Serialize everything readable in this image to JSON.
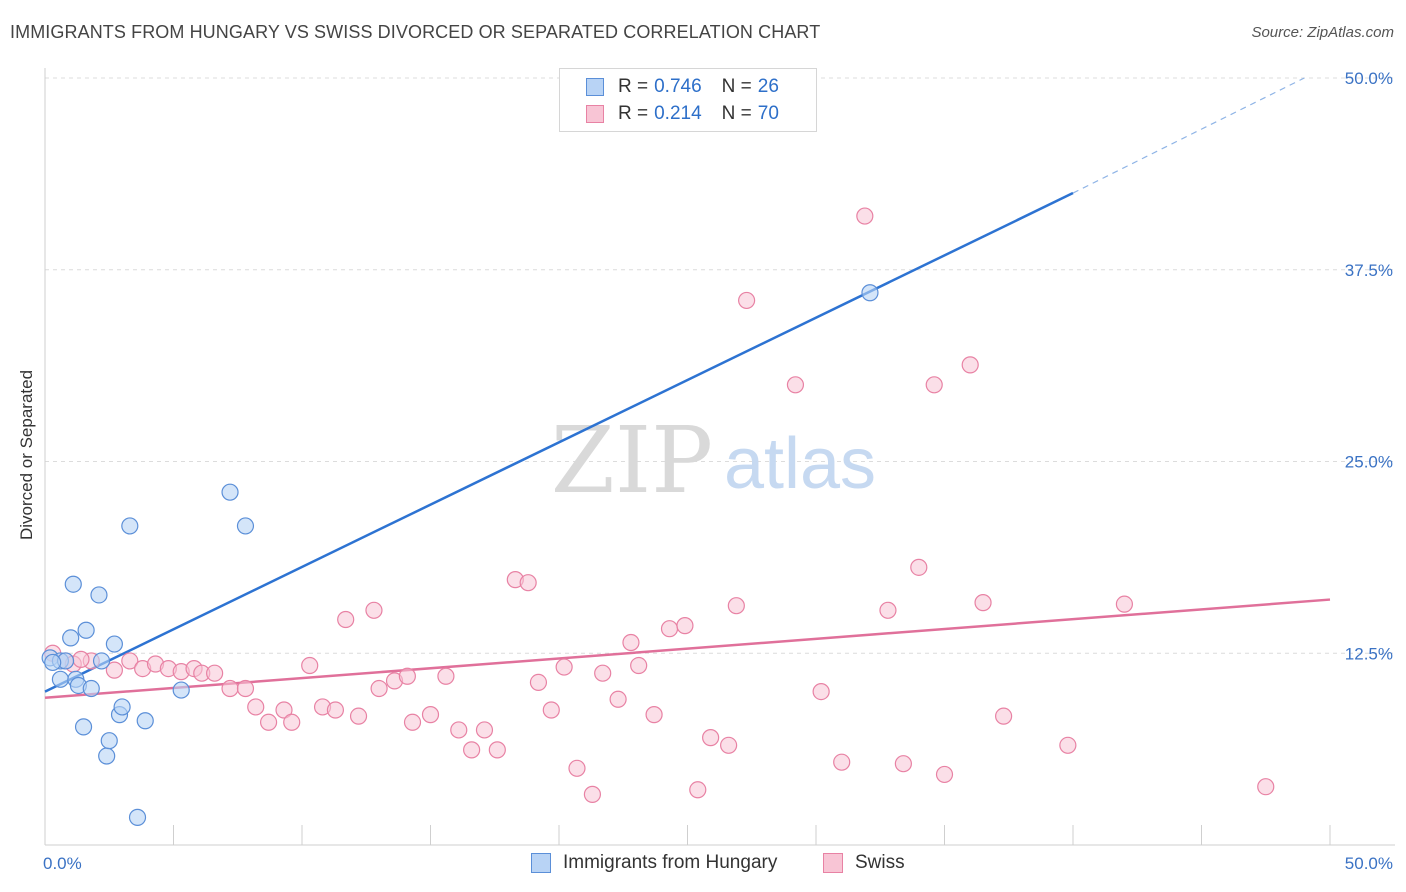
{
  "title": "IMMIGRANTS FROM HUNGARY VS SWISS DIVORCED OR SEPARATED CORRELATION CHART",
  "source": "Source: ZipAtlas.com",
  "watermark": {
    "zip": "ZIP",
    "atlas": "atlas"
  },
  "legend": {
    "items": [
      {
        "r_label": "R =",
        "r_value": "0.746",
        "n_label": "N =",
        "n_value": "26"
      },
      {
        "r_label": "R =",
        "r_value": "0.214",
        "n_label": "N =",
        "n_value": "70"
      }
    ]
  },
  "bottom_legend": {
    "series1": "Immigrants from Hungary",
    "series2": "Swiss"
  },
  "colors": {
    "blue_fill": "#b8d3f5",
    "blue_stroke": "#5b8fd8",
    "blue_line": "#2d73d2",
    "pink_fill": "#f8c5d5",
    "pink_stroke": "#e882a4",
    "pink_line": "#e0709a",
    "tick_text": "#3a72c4",
    "grid": "#dcdcdc"
  },
  "chart_data": {
    "type": "scatter",
    "title": "IMMIGRANTS FROM HUNGARY VS SWISS DIVORCED OR SEPARATED CORRELATION CHART",
    "xlabel": "",
    "ylabel": "Divorced or Separated",
    "xlim": [
      0,
      50
    ],
    "ylim": [
      0,
      50
    ],
    "x_tick_labels": [
      "0.0%",
      "50.0%"
    ],
    "y_ticks": [
      12.5,
      25.0,
      37.5,
      50.0
    ],
    "y_tick_labels": [
      "12.5%",
      "25.0%",
      "37.5%",
      "50.0%"
    ],
    "series": [
      {
        "name": "Immigrants from Hungary",
        "color": "#5b8fd8",
        "r": 0.746,
        "n": 26,
        "trend": {
          "x": [
            0,
            40
          ],
          "y": [
            10.0,
            42.5
          ],
          "dashed_to": [
            49,
            50.0
          ]
        },
        "points": [
          [
            0.2,
            12.2
          ],
          [
            0.6,
            12.0
          ],
          [
            0.8,
            12.0
          ],
          [
            1.0,
            13.5
          ],
          [
            1.1,
            17.0
          ],
          [
            0.6,
            10.8
          ],
          [
            1.2,
            10.8
          ],
          [
            1.3,
            10.4
          ],
          [
            1.6,
            14.0
          ],
          [
            1.8,
            10.2
          ],
          [
            1.5,
            7.7
          ],
          [
            2.1,
            16.3
          ],
          [
            2.2,
            12.0
          ],
          [
            2.7,
            13.1
          ],
          [
            2.4,
            5.8
          ],
          [
            2.5,
            6.8
          ],
          [
            2.9,
            8.5
          ],
          [
            3.0,
            9.0
          ],
          [
            3.9,
            8.1
          ],
          [
            3.6,
            1.8
          ],
          [
            3.3,
            20.8
          ],
          [
            5.3,
            10.1
          ],
          [
            7.2,
            23.0
          ],
          [
            7.8,
            20.8
          ],
          [
            32.1,
            36.0
          ],
          [
            0.3,
            11.9
          ]
        ]
      },
      {
        "name": "Swiss",
        "color": "#e882a4",
        "r": 0.214,
        "n": 70,
        "trend": {
          "x": [
            0,
            50
          ],
          "y": [
            9.6,
            16.0
          ]
        },
        "points": [
          [
            0.3,
            12.5
          ],
          [
            0.8,
            12.0
          ],
          [
            1.1,
            11.8
          ],
          [
            1.8,
            12.0
          ],
          [
            2.7,
            11.4
          ],
          [
            3.3,
            12.0
          ],
          [
            3.8,
            11.5
          ],
          [
            4.3,
            11.8
          ],
          [
            4.8,
            11.5
          ],
          [
            5.3,
            11.3
          ],
          [
            5.8,
            11.5
          ],
          [
            6.1,
            11.2
          ],
          [
            6.6,
            11.2
          ],
          [
            7.2,
            10.2
          ],
          [
            7.8,
            10.2
          ],
          [
            8.2,
            9.0
          ],
          [
            8.7,
            8.0
          ],
          [
            9.3,
            8.8
          ],
          [
            9.6,
            8.0
          ],
          [
            10.3,
            11.7
          ],
          [
            10.8,
            9.0
          ],
          [
            11.3,
            8.8
          ],
          [
            11.7,
            14.7
          ],
          [
            12.2,
            8.4
          ],
          [
            12.8,
            15.3
          ],
          [
            13.0,
            10.2
          ],
          [
            13.6,
            10.7
          ],
          [
            14.1,
            11.0
          ],
          [
            14.3,
            8.0
          ],
          [
            15.0,
            8.5
          ],
          [
            15.6,
            11.0
          ],
          [
            16.1,
            7.5
          ],
          [
            16.6,
            6.2
          ],
          [
            17.1,
            7.5
          ],
          [
            17.6,
            6.2
          ],
          [
            18.3,
            17.3
          ],
          [
            18.8,
            17.1
          ],
          [
            19.2,
            10.6
          ],
          [
            19.7,
            8.8
          ],
          [
            20.2,
            11.6
          ],
          [
            20.7,
            5.0
          ],
          [
            21.3,
            3.3
          ],
          [
            21.7,
            11.2
          ],
          [
            22.3,
            9.5
          ],
          [
            22.8,
            13.2
          ],
          [
            23.1,
            11.7
          ],
          [
            23.7,
            8.5
          ],
          [
            24.3,
            14.1
          ],
          [
            24.9,
            14.3
          ],
          [
            25.4,
            3.6
          ],
          [
            25.9,
            7.0
          ],
          [
            26.6,
            6.5
          ],
          [
            26.9,
            15.6
          ],
          [
            27.3,
            35.5
          ],
          [
            29.2,
            30.0
          ],
          [
            30.2,
            10.0
          ],
          [
            31.0,
            5.4
          ],
          [
            31.9,
            41.0
          ],
          [
            32.8,
            15.3
          ],
          [
            33.4,
            5.3
          ],
          [
            34.0,
            18.1
          ],
          [
            34.6,
            30.0
          ],
          [
            35.0,
            4.6
          ],
          [
            36.0,
            31.3
          ],
          [
            36.5,
            15.8
          ],
          [
            37.3,
            8.4
          ],
          [
            39.8,
            6.5
          ],
          [
            42.0,
            15.7
          ],
          [
            47.5,
            3.8
          ],
          [
            1.4,
            12.1
          ]
        ]
      }
    ]
  }
}
